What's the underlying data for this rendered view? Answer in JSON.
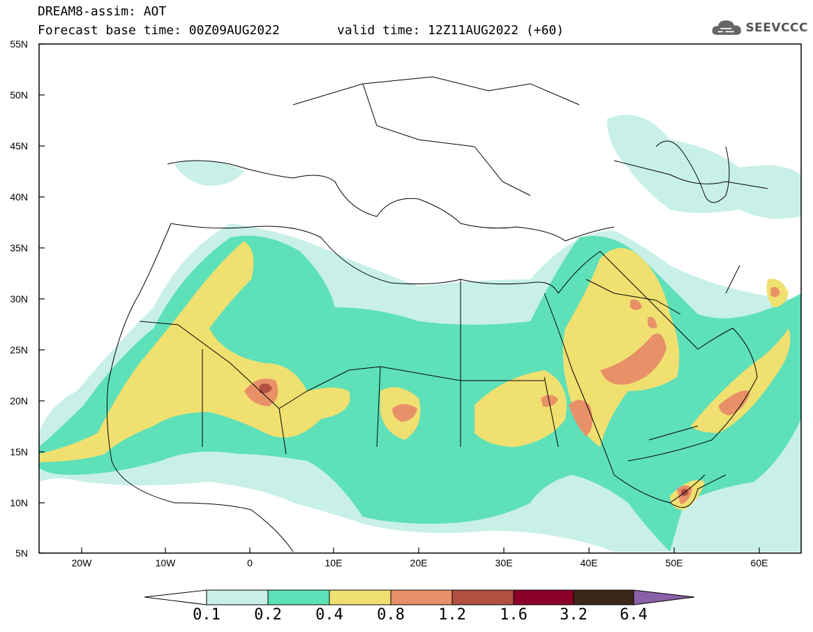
{
  "header": {
    "title": "DREAM8-assim: AOT",
    "base_time": "Forecast base time: 00Z09AUG2022",
    "valid_time": "valid time: 12Z11AUG2022 (+60)"
  },
  "logo": {
    "text": "SEEVCCC",
    "icon": "cloud-icon"
  },
  "map": {
    "lat_labels": [
      "55N",
      "50N",
      "45N",
      "40N",
      "35N",
      "30N",
      "25N",
      "20N",
      "15N",
      "10N",
      "5N"
    ],
    "lon_labels": [
      "20W",
      "10W",
      "0",
      "10E",
      "20E",
      "30E",
      "40E",
      "50E",
      "60E"
    ],
    "region": "North Africa, Mediterranean, Middle East"
  },
  "colorbar": {
    "labels": [
      "0.1",
      "0.2",
      "0.4",
      "0.8",
      "1.2",
      "1.6",
      "3.2",
      "6.4"
    ],
    "colors": [
      "#c8f0e8",
      "#5ee0b8",
      "#f0e070",
      "#e89068",
      "#b05040",
      "#8a0028",
      "#3c2818",
      "#8a60a8"
    ]
  }
}
